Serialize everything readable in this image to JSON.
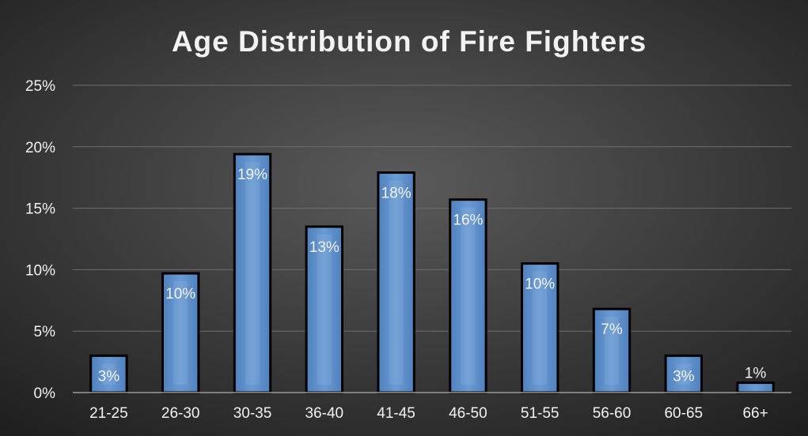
{
  "chart_data": {
    "type": "bar",
    "title": "Age Distribution of Fire Fighters",
    "categories": [
      "21-25",
      "26-30",
      "30-35",
      "36-40",
      "41-45",
      "46-50",
      "51-55",
      "56-60",
      "60-65",
      "66+"
    ],
    "values": [
      3,
      9.7,
      19.4,
      13.5,
      17.9,
      15.7,
      10.5,
      6.8,
      3,
      0.8
    ],
    "data_labels": [
      "3%",
      "10%",
      "19%",
      "13%",
      "18%",
      "16%",
      "10%",
      "7%",
      "3%",
      "1%"
    ],
    "y_ticks": [
      "0%",
      "5%",
      "10%",
      "15%",
      "20%",
      "25%"
    ],
    "ylim": [
      0,
      25
    ],
    "grid": true,
    "legend": "none",
    "colors": {
      "background_center": "#5a5a5a",
      "background_edge": "#1f1f1f",
      "bar_fill": "#4f81bd",
      "bar_fill_light": "#6a9ad4",
      "bar_outline": "#000000",
      "text": "#f2f2f2",
      "gridline": "#6e6e6e",
      "axis": "#9a9a9a"
    }
  }
}
